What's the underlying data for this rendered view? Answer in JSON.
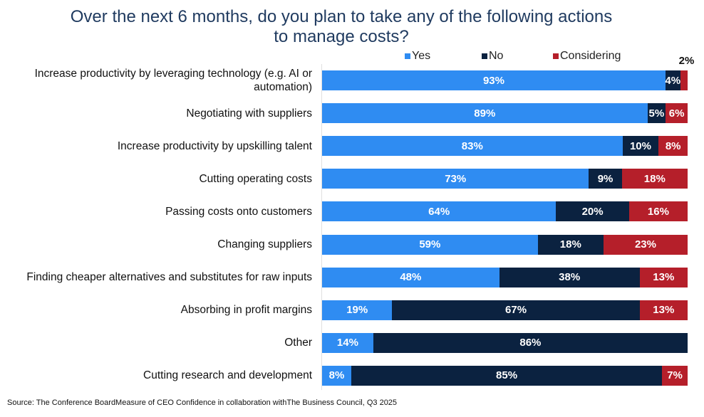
{
  "chart_data": {
    "type": "bar",
    "orientation": "horizontal",
    "stacked": true,
    "title": "Over the next 6 months, do you plan to take any of the following actions to manage costs?",
    "title_lines": [
      "Over the next 6 months, do you plan to take any of the following actions",
      "to manage costs?"
    ],
    "legend": [
      "Yes",
      "No",
      "Considering"
    ],
    "legend_position": "top",
    "colors": {
      "Yes": "#2F8CF2",
      "No": "#0B2240",
      "Considering": "#B51F2A"
    },
    "categories": [
      "Increase productivity by leveraging technology (e.g. AI or automation)",
      "Negotiating with suppliers",
      "Increase productivity by upskilling talent",
      "Cutting operating costs",
      "Passing costs onto customers",
      "Changing suppliers",
      "Finding cheaper alternatives and substitutes for raw inputs",
      "Absorbing in profit margins",
      "Other",
      "Cutting research and development"
    ],
    "series": [
      {
        "name": "Yes",
        "values": [
          93,
          89,
          83,
          73,
          64,
          59,
          48,
          19,
          14,
          8
        ]
      },
      {
        "name": "No",
        "values": [
          4,
          5,
          10,
          9,
          20,
          18,
          38,
          67,
          86,
          85
        ]
      },
      {
        "name": "Considering",
        "values": [
          2,
          6,
          8,
          18,
          16,
          23,
          13,
          13,
          0,
          7
        ]
      }
    ],
    "data_labels": {
      "Yes": [
        "93%",
        "89%",
        "83%",
        "73%",
        "64%",
        "59%",
        "48%",
        "19%",
        "14%",
        "8%"
      ],
      "No": [
        "4%",
        "5%",
        "10%",
        "9%",
        "20%",
        "18%",
        "38%",
        "67%",
        "86%",
        "85%"
      ],
      "Considering": [
        "2%",
        "6%",
        "8%",
        "18%",
        "16%",
        "23%",
        "13%",
        "13%",
        "",
        "7%"
      ]
    },
    "unit": "%"
  },
  "source": "Source: The Conference BoardMeasure of CEO Confidence in collaboration withThe Business Council, Q3 2025"
}
